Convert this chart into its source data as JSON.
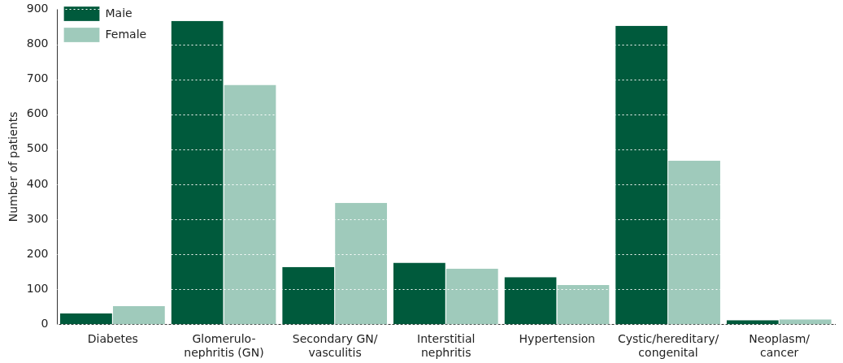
{
  "chart_data": {
    "type": "bar",
    "ylabel": "Number of patients",
    "categories": [
      "Diabetes",
      "Glomerulo-\nnephritis (GN)",
      "Secondary GN/\nvasculitis",
      "Interstitial\nnephritis",
      "Hypertension",
      "Cystic/hereditary/\ncongenital",
      "Neoplasm/\ncancer"
    ],
    "series": [
      {
        "name": "Male",
        "color": "#005a3c",
        "values": [
          31,
          867,
          164,
          176,
          135,
          853,
          12
        ]
      },
      {
        "name": "Female",
        "color": "#9fcabb",
        "values": [
          52,
          684,
          347,
          159,
          112,
          468,
          14
        ]
      }
    ],
    "ylim": [
      0,
      900
    ],
    "yticks": [
      0,
      100,
      200,
      300,
      400,
      500,
      600,
      700,
      800,
      900
    ],
    "grid": "y",
    "legend": "top left"
  }
}
